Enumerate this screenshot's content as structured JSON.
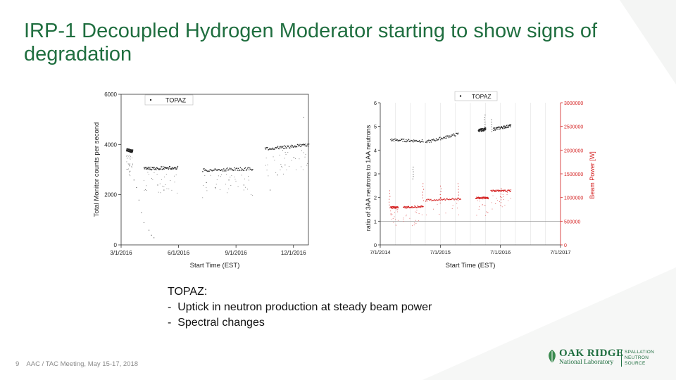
{
  "slide": {
    "title": "IRP-1 Decoupled Hydrogen Moderator starting to show signs of degradation",
    "notes": {
      "heading": "TOPAZ:",
      "bullets": [
        "-  Uptick in neutron production at steady beam power",
        "-  Spectral changes"
      ]
    },
    "footer": {
      "page_number": "9",
      "text": "AAC / TAC Meeting, May 15-17, 2018"
    },
    "logo": {
      "name": "OAK RIDGE",
      "subtitle": "National Laboratory",
      "division": [
        "SPALLATION",
        "NEUTRON",
        "SOURCE"
      ]
    },
    "colors": {
      "title": "#1f6e3f",
      "series_black": "#222222",
      "series_red": "#d42020"
    }
  },
  "chart_data": [
    {
      "type": "scatter",
      "title": "",
      "xlabel": "Start Time (EST)",
      "ylabel": "Total Monitor counts per second",
      "x_ticks": [
        "3/1/2016",
        "6/1/2016",
        "9/1/2016",
        "12/1/2016"
      ],
      "y_ticks": [
        "0",
        "2000",
        "4000",
        "6000"
      ],
      "xlim": [
        0,
        15
      ],
      "ylim": [
        0,
        6000
      ],
      "legend": [
        "TOPAZ"
      ],
      "legend_position": "top-left",
      "series": [
        {
          "name": "TOPAZ",
          "segments": [
            {
              "x": [
                0.4,
                0.9
              ],
              "y": [
                3800,
                3750
              ]
            },
            {
              "x": [
                1.8,
                4.5
              ],
              "y": [
                3050,
                3100
              ]
            },
            {
              "x": [
                6.5,
                10.5
              ],
              "y": [
                3000,
                3050
              ]
            },
            {
              "x": [
                11.5,
                15.0
              ],
              "y": [
                3850,
                4000
              ]
            }
          ],
          "scatter_low": [
            [
              1.0,
              2600
            ],
            [
              1.2,
              2300
            ],
            [
              1.4,
              1800
            ],
            [
              1.6,
              1300
            ],
            [
              1.8,
              900
            ],
            [
              2.2,
              600
            ],
            [
              2.4,
              400
            ],
            [
              2.6,
              300
            ],
            [
              2.9,
              2400
            ],
            [
              3.4,
              2200
            ],
            [
              6.8,
              2500
            ],
            [
              7.5,
              2300
            ],
            [
              8.6,
              2600
            ],
            [
              9.8,
              2400
            ],
            [
              11.9,
              2200
            ],
            [
              12.5,
              2800
            ],
            [
              13.1,
              3200
            ],
            [
              13.8,
              3500
            ],
            [
              14.6,
              5100
            ]
          ]
        }
      ]
    },
    {
      "type": "scatter",
      "title": "",
      "xlabel": "Start Time (EST)",
      "ylabel": "ratio of 3AA neutrons to 1AA neutrons",
      "y2label": "Beam Power [W]",
      "x_ticks": [
        "7/1/2014",
        "7/1/2015",
        "7/1/2016",
        "7/1/2017"
      ],
      "y_ticks": [
        "0",
        "1",
        "2",
        "3",
        "4",
        "5",
        "6"
      ],
      "y2_ticks": [
        "0",
        "500000",
        "1000000",
        "1500000",
        "2000000",
        "2500000",
        "3000000"
      ],
      "xlim": [
        0,
        36
      ],
      "ylim": [
        0,
        6
      ],
      "y2lim": [
        0,
        3000000
      ],
      "legend": [
        "TOPAZ"
      ],
      "legend_position": "top-center",
      "series": [
        {
          "name": "TOPAZ",
          "axis": "left",
          "segments": [
            {
              "x": [
                2.0,
                8.5
              ],
              "y": [
                4.45,
                4.4
              ]
            },
            {
              "x": [
                9.0,
                15.5
              ],
              "y": [
                4.35,
                4.7
              ]
            },
            {
              "x": [
                19.5,
                21.0
              ],
              "y": [
                4.85,
                4.9
              ]
            },
            {
              "x": [
                22.5,
                26.0
              ],
              "y": [
                4.9,
                5.05
              ]
            }
          ],
          "spikes": [
            [
              20.8,
              5.5
            ],
            [
              22.2,
              5.3
            ],
            [
              6.5,
              3.3
            ]
          ]
        },
        {
          "name": "Beam Power",
          "axis": "right",
          "segments": [
            {
              "x": [
                2.0,
                3.5
              ],
              "y": [
                800000,
                800000
              ]
            },
            {
              "x": [
                4.5,
                8.5
              ],
              "y": [
                800000,
                820000
              ]
            },
            {
              "x": [
                9.0,
                16.0
              ],
              "y": [
                950000,
                980000
              ]
            },
            {
              "x": [
                19.0,
                21.5
              ],
              "y": [
                1000000,
                1000000
              ]
            },
            {
              "x": [
                22.0,
                26.0
              ],
              "y": [
                1150000,
                1150000
              ]
            }
          ],
          "spikes": [
            [
              1.8,
              1150000
            ],
            [
              8.5,
              1300000
            ],
            [
              12.0,
              1250000
            ],
            [
              15.5,
              1300000
            ],
            [
              24.0,
              1200000
            ]
          ]
        }
      ],
      "reference_line": {
        "axis": "left",
        "value": 1
      }
    }
  ]
}
